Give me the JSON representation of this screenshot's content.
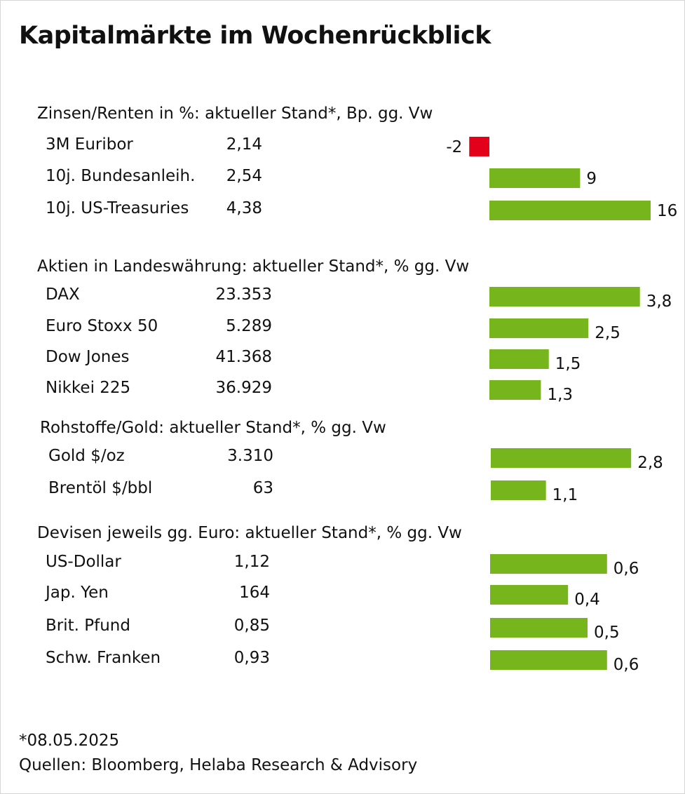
{
  "title": "Kapitalmärkte im Wochenrückblick",
  "colors": {
    "positive": "#76b51b",
    "negative": "#e2001a"
  },
  "chart_data": {
    "type": "bar",
    "orientation": "horizontal",
    "title": "Kapitalmärkte im Wochenrückblick",
    "sections": [
      {
        "title": "Zinsen/Renten in %: aktueller Stand*, Bp. gg. Vw",
        "unit": "Bp.",
        "rows": [
          {
            "label": "3M Euribor",
            "value": "2,14",
            "change": -2,
            "change_label": "-2"
          },
          {
            "label": "10j. Bundesanleih.",
            "value": "2,54",
            "change": 9,
            "change_label": "9"
          },
          {
            "label": "10j. US-Treasuries",
            "value": "4,38",
            "change": 16,
            "change_label": "16"
          }
        ]
      },
      {
        "title": "Aktien in Landeswährung: aktueller Stand*, % gg. Vw",
        "unit": "%",
        "rows": [
          {
            "label": "DAX",
            "value": "23.353",
            "change": 3.8,
            "change_label": "3,8"
          },
          {
            "label": "Euro Stoxx 50",
            "value": "5.289",
            "change": 2.5,
            "change_label": "2,5"
          },
          {
            "label": "Dow Jones",
            "value": "41.368",
            "change": 1.5,
            "change_label": "1,5"
          },
          {
            "label": "Nikkei 225",
            "value": "36.929",
            "change": 1.3,
            "change_label": "1,3"
          }
        ]
      },
      {
        "title": "Rohstoffe/Gold: aktueller Stand*, % gg. Vw",
        "unit": "%",
        "rows": [
          {
            "label": "Gold $/oz",
            "value": "3.310",
            "change": 2.8,
            "change_label": "2,8"
          },
          {
            "label": "Brentöl $/bbl",
            "value": "63",
            "change": 1.1,
            "change_label": "1,1"
          }
        ]
      },
      {
        "title": "Devisen jeweils gg. Euro: aktueller Stand*, % gg. Vw",
        "unit": "%",
        "rows": [
          {
            "label": "US-Dollar",
            "value": "1,12",
            "change": 0.6,
            "change_label": "0,6"
          },
          {
            "label": "Jap. Yen",
            "value": "164",
            "change": 0.4,
            "change_label": "0,4"
          },
          {
            "label": "Brit. Pfund",
            "value": "0,85",
            "change": 0.5,
            "change_label": "0,5"
          },
          {
            "label": "Schw. Franken",
            "value": "0,93",
            "change": 0.6,
            "change_label": "0,6"
          }
        ]
      }
    ]
  },
  "footnote": "*08.05.2025",
  "sources": "Quellen: Bloomberg, Helaba Research & Advisory"
}
